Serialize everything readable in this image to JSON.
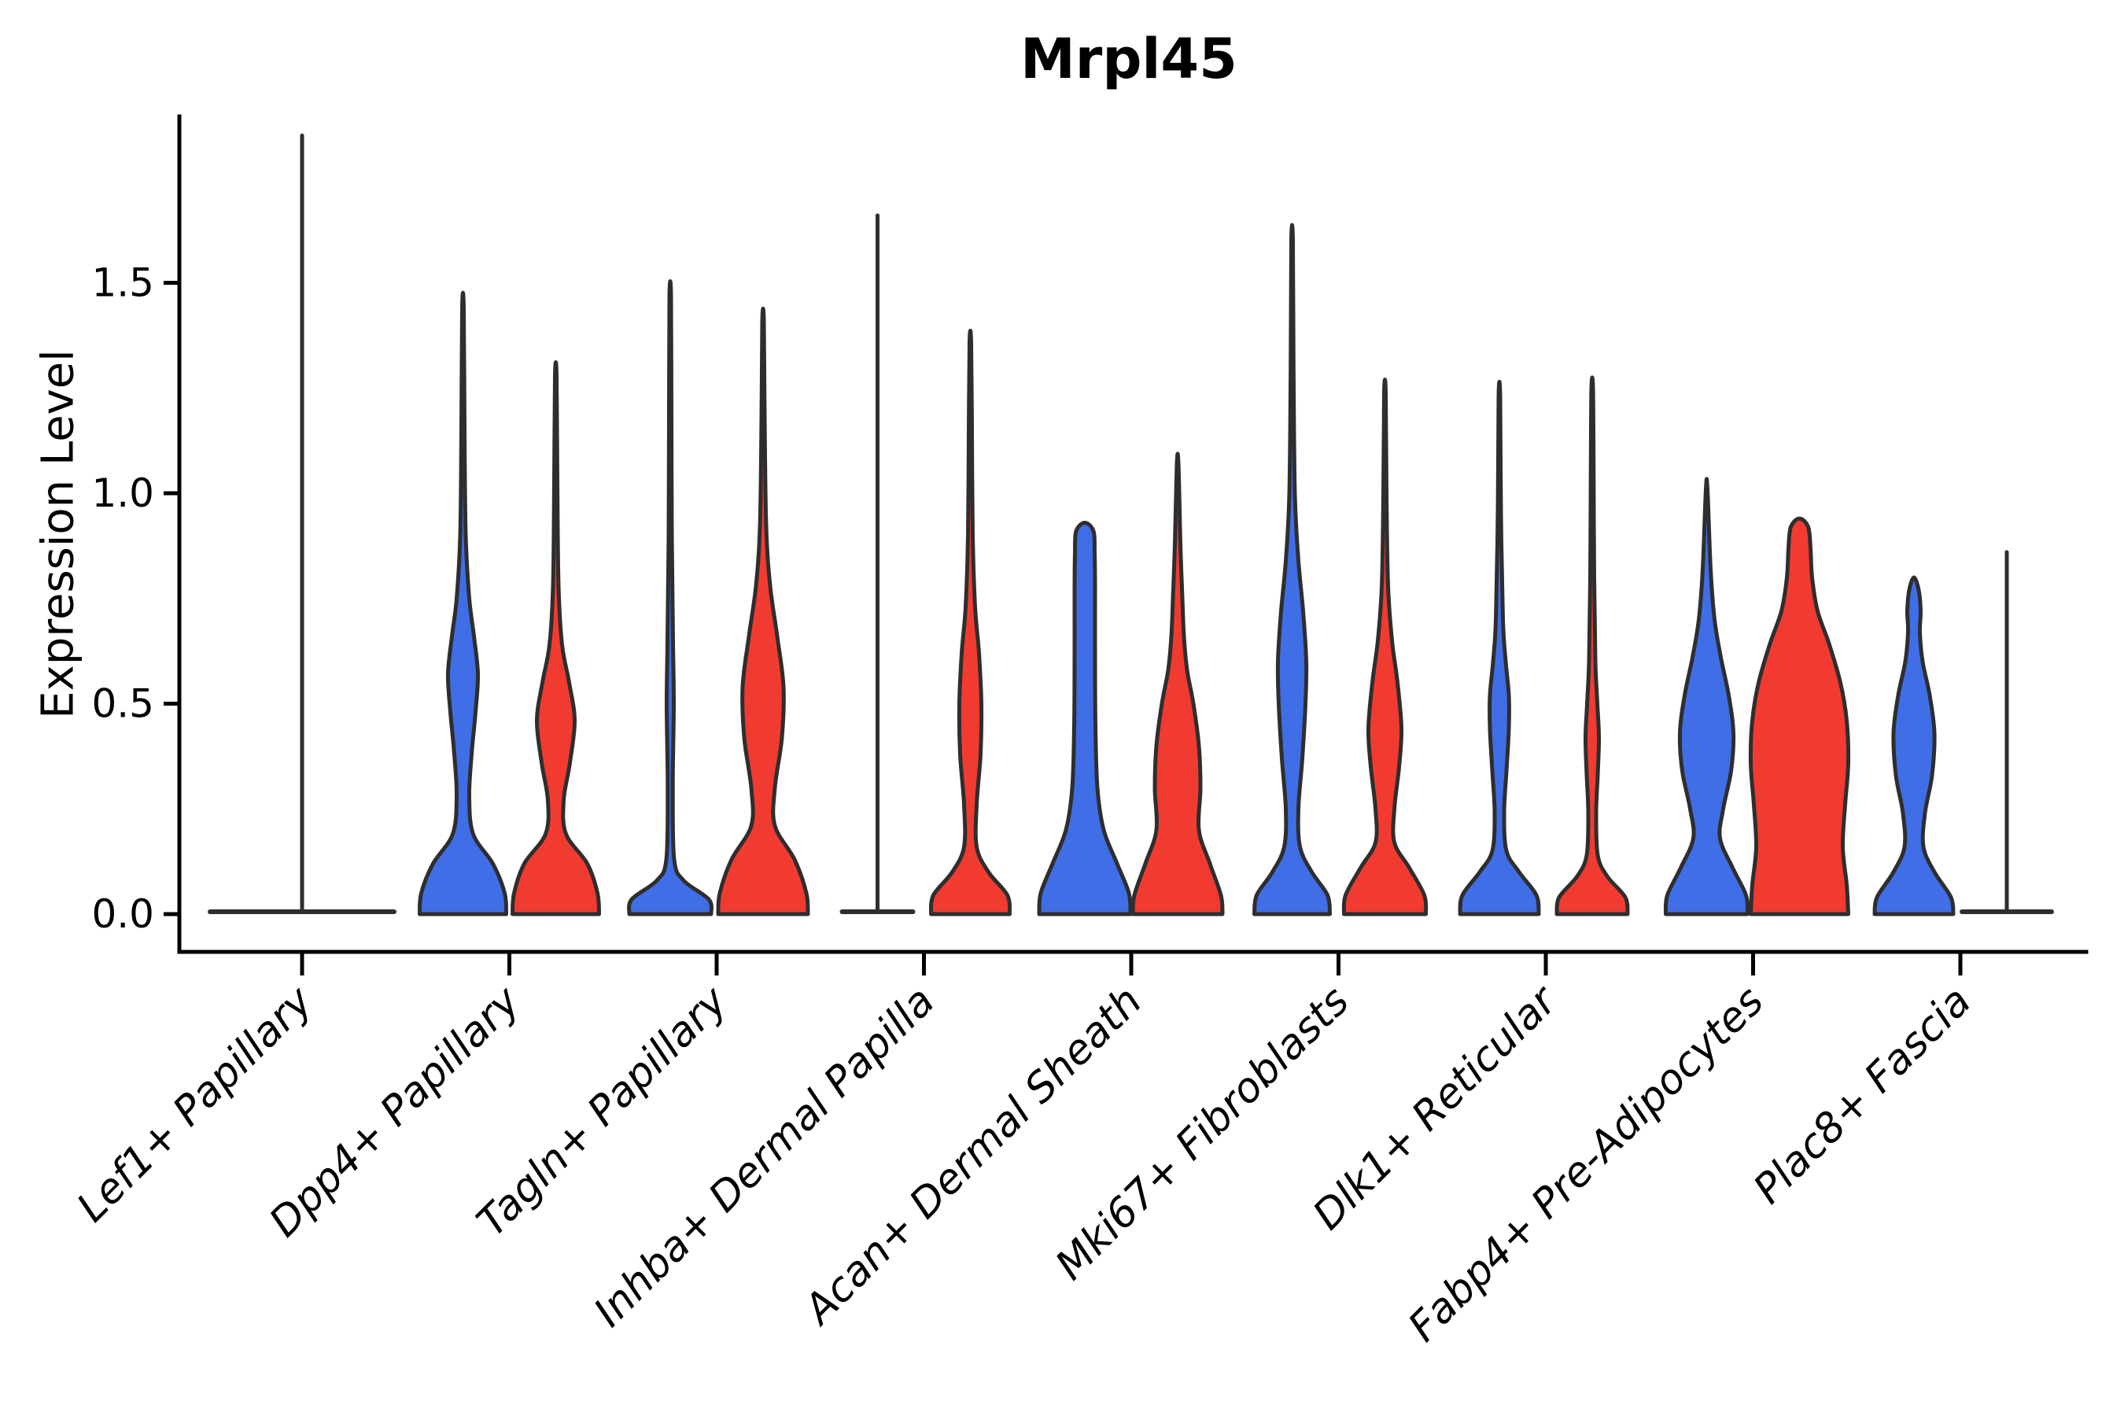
{
  "title": "Mrpl45",
  "y_axis": {
    "label": "Expression Level",
    "tick_labels": [
      "0.0",
      "0.5",
      "1.0",
      "1.5"
    ],
    "tick_values": [
      0.0,
      0.5,
      1.0,
      1.5
    ]
  },
  "colors": {
    "blue": "#406EE6",
    "red": "#F23B30",
    "outline": "#2E2E2E",
    "axis": "#000000"
  },
  "chart_data": {
    "type": "violin",
    "title": "Mrpl45",
    "xlabel": "",
    "ylabel": "Expression Level",
    "ylim": [
      -0.09,
      1.9
    ],
    "yticks": [
      0.0,
      0.5,
      1.0,
      1.5
    ],
    "grid": false,
    "legend": "none",
    "categories": [
      "Lef1+ Papillary",
      "Dpp4+ Papillary",
      "Tagln+ Papillary",
      "Inhba+ Dermal Papilla",
      "Acan+ Dermal Sheath",
      "Mki67+ Fibroblasts",
      "Dlk1+ Reticular",
      "Fabp4+ Pre-Adipocytes",
      "Plac8+ Fascia"
    ],
    "hue_colors": {
      "blue": "#406EE6",
      "red": "#F23B30"
    },
    "groups": [
      {
        "category": "Lef1+ Papillary",
        "violins": [
          {
            "hue": "blue",
            "position": "center",
            "style": "flat_spike",
            "max": 1.85,
            "flat_halfwidth": 120
          }
        ]
      },
      {
        "category": "Dpp4+ Papillary",
        "violins": [
          {
            "hue": "blue",
            "position": "left",
            "style": "density",
            "max": 1.44,
            "profile": [
              [
                0,
                55
              ],
              [
                0.05,
                53
              ],
              [
                0.12,
                38
              ],
              [
                0.19,
                13
              ],
              [
                0.28,
                8
              ],
              [
                0.38,
                11
              ],
              [
                0.48,
                16
              ],
              [
                0.57,
                19
              ],
              [
                0.66,
                14
              ],
              [
                0.75,
                8
              ],
              [
                0.9,
                3.5
              ],
              [
                1.15,
                2
              ],
              [
                1.44,
                1
              ]
            ]
          },
          {
            "hue": "red",
            "position": "right",
            "style": "density",
            "max": 1.28,
            "profile": [
              [
                0,
                55
              ],
              [
                0.05,
                53
              ],
              [
                0.12,
                40
              ],
              [
                0.19,
                13
              ],
              [
                0.27,
                10
              ],
              [
                0.36,
                18
              ],
              [
                0.46,
                24
              ],
              [
                0.55,
                17
              ],
              [
                0.64,
                8
              ],
              [
                0.78,
                3.5
              ],
              [
                1.03,
                2
              ],
              [
                1.28,
                1
              ]
            ]
          }
        ]
      },
      {
        "category": "Tagln+ Papillary",
        "violins": [
          {
            "hue": "blue",
            "position": "left",
            "style": "density",
            "max": 1.47,
            "profile": [
              [
                0,
                52
              ],
              [
                0.035,
                49
              ],
              [
                0.08,
                17
              ],
              [
                0.13,
                5
              ],
              [
                0.3,
                3.2
              ],
              [
                0.5,
                4.5
              ],
              [
                0.65,
                3.5
              ],
              [
                0.9,
                2
              ],
              [
                1.2,
                1.5
              ],
              [
                1.47,
                1
              ]
            ]
          },
          {
            "hue": "red",
            "position": "right",
            "style": "density",
            "max": 1.41,
            "profile": [
              [
                0,
                57
              ],
              [
                0.05,
                55
              ],
              [
                0.13,
                40
              ],
              [
                0.21,
                15
              ],
              [
                0.3,
                15
              ],
              [
                0.42,
                24
              ],
              [
                0.54,
                26
              ],
              [
                0.66,
                18
              ],
              [
                0.78,
                9
              ],
              [
                0.92,
                4
              ],
              [
                1.18,
                2
              ],
              [
                1.41,
                1
              ]
            ]
          }
        ]
      },
      {
        "category": "Inhba+ Dermal Papilla",
        "violins": [
          {
            "hue": "blue",
            "position": "left",
            "style": "flat_spike",
            "max": 1.66,
            "flat_halfwidth": 48
          },
          {
            "hue": "red",
            "position": "right",
            "style": "density",
            "max": 1.36,
            "profile": [
              [
                0,
                50
              ],
              [
                0.045,
                47
              ],
              [
                0.1,
                23
              ],
              [
                0.16,
                8
              ],
              [
                0.26,
                8
              ],
              [
                0.38,
                13
              ],
              [
                0.5,
                14
              ],
              [
                0.62,
                11
              ],
              [
                0.73,
                6
              ],
              [
                0.9,
                3
              ],
              [
                1.15,
                2
              ],
              [
                1.36,
                1
              ]
            ]
          }
        ]
      },
      {
        "category": "Acan+ Dermal Sheath",
        "violins": [
          {
            "hue": "blue",
            "position": "left",
            "style": "density",
            "max": 0.93,
            "profile": [
              [
                0,
                58
              ],
              [
                0.05,
                56
              ],
              [
                0.12,
                41
              ],
              [
                0.2,
                24
              ],
              [
                0.3,
                16
              ],
              [
                0.45,
                13.5
              ],
              [
                0.62,
                13
              ],
              [
                0.78,
                13
              ],
              [
                0.86,
                12.5
              ],
              [
                0.91,
                11
              ],
              [
                0.93,
                0
              ]
            ]
          },
          {
            "hue": "red",
            "position": "right",
            "style": "density",
            "max": 1.07,
            "profile": [
              [
                0,
                57
              ],
              [
                0.045,
                55
              ],
              [
                0.12,
                41
              ],
              [
                0.2,
                27
              ],
              [
                0.3,
                29
              ],
              [
                0.4,
                27
              ],
              [
                0.5,
                20
              ],
              [
                0.58,
                12
              ],
              [
                0.66,
                8
              ],
              [
                0.75,
                6
              ],
              [
                0.88,
                3.5
              ],
              [
                1.07,
                1
              ]
            ]
          }
        ]
      },
      {
        "category": "Mki67+ Fibroblasts",
        "violins": [
          {
            "hue": "blue",
            "position": "left",
            "style": "density",
            "max": 1.6,
            "profile": [
              [
                0,
                48
              ],
              [
                0.045,
                45
              ],
              [
                0.1,
                25
              ],
              [
                0.16,
                10
              ],
              [
                0.25,
                8
              ],
              [
                0.37,
                13
              ],
              [
                0.5,
                17
              ],
              [
                0.6,
                18
              ],
              [
                0.72,
                14
              ],
              [
                0.84,
                8
              ],
              [
                1.0,
                3.5
              ],
              [
                1.3,
                1.8
              ],
              [
                1.6,
                1
              ]
            ]
          },
          {
            "hue": "red",
            "position": "right",
            "style": "density",
            "max": 1.24,
            "profile": [
              [
                0,
                52
              ],
              [
                0.045,
                50
              ],
              [
                0.11,
                31
              ],
              [
                0.17,
                12
              ],
              [
                0.25,
                12
              ],
              [
                0.35,
                18
              ],
              [
                0.44,
                21
              ],
              [
                0.55,
                16
              ],
              [
                0.65,
                9
              ],
              [
                0.78,
                4
              ],
              [
                1.0,
                2
              ],
              [
                1.24,
                1
              ]
            ]
          }
        ]
      },
      {
        "category": "Dlk1+ Reticular",
        "violins": [
          {
            "hue": "blue",
            "position": "left",
            "style": "density",
            "max": 1.23,
            "profile": [
              [
                0,
                50
              ],
              [
                0.045,
                47
              ],
              [
                0.1,
                25
              ],
              [
                0.15,
                9
              ],
              [
                0.24,
                6
              ],
              [
                0.34,
                9
              ],
              [
                0.44,
                12
              ],
              [
                0.52,
                12
              ],
              [
                0.6,
                8
              ],
              [
                0.7,
                4.5
              ],
              [
                0.95,
                2
              ],
              [
                1.23,
                1
              ]
            ]
          },
          {
            "hue": "red",
            "position": "right",
            "style": "density",
            "max": 1.25,
            "profile": [
              [
                0,
                45
              ],
              [
                0.04,
                42
              ],
              [
                0.09,
                19
              ],
              [
                0.14,
                7
              ],
              [
                0.24,
                5
              ],
              [
                0.33,
                7
              ],
              [
                0.42,
                8.5
              ],
              [
                0.5,
                6.5
              ],
              [
                0.6,
                4
              ],
              [
                0.8,
                2.5
              ],
              [
                1.05,
                1.8
              ],
              [
                1.25,
                1
              ]
            ]
          }
        ]
      },
      {
        "category": "Fabp4+ Pre-Adipocytes",
        "violins": [
          {
            "hue": "blue",
            "position": "left",
            "style": "density",
            "max": 1.01,
            "profile": [
              [
                0,
                52
              ],
              [
                0.045,
                50
              ],
              [
                0.11,
                33
              ],
              [
                0.18,
                17
              ],
              [
                0.25,
                21
              ],
              [
                0.34,
                31
              ],
              [
                0.43,
                34
              ],
              [
                0.52,
                28
              ],
              [
                0.61,
                18
              ],
              [
                0.7,
                10
              ],
              [
                0.82,
                5
              ],
              [
                1.01,
                1
              ]
            ]
          },
          {
            "hue": "red",
            "position": "right",
            "style": "density",
            "max": 0.94,
            "profile": [
              [
                0,
                62
              ],
              [
                0.07,
                60
              ],
              [
                0.16,
                55
              ],
              [
                0.26,
                58
              ],
              [
                0.36,
                62
              ],
              [
                0.46,
                60
              ],
              [
                0.55,
                52
              ],
              [
                0.64,
                38
              ],
              [
                0.72,
                23
              ],
              [
                0.8,
                16
              ],
              [
                0.87,
                14
              ],
              [
                0.92,
                11
              ],
              [
                0.94,
                0
              ]
            ]
          }
        ]
      },
      {
        "category": "Plac8+ Fascia",
        "violins": [
          {
            "hue": "blue",
            "position": "left",
            "style": "density",
            "max": 0.8,
            "profile": [
              [
                0,
                50
              ],
              [
                0.04,
                47
              ],
              [
                0.1,
                26
              ],
              [
                0.16,
                12
              ],
              [
                0.24,
                14
              ],
              [
                0.33,
                23
              ],
              [
                0.43,
                26
              ],
              [
                0.52,
                20
              ],
              [
                0.6,
                11
              ],
              [
                0.67,
                7.5
              ],
              [
                0.72,
                8.5
              ],
              [
                0.77,
                6
              ],
              [
                0.8,
                0
              ]
            ]
          },
          {
            "hue": "red",
            "position": "right",
            "style": "flat_spike",
            "max": 0.86,
            "flat_halfwidth": 60
          }
        ]
      }
    ]
  }
}
